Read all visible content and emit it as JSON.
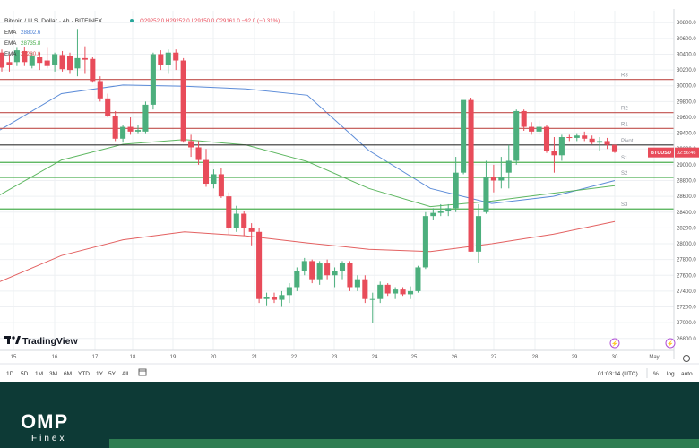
{
  "header": {
    "symbol_title": "Bitcoin / U.S. Dollar · 4h · BITFINEX",
    "ohlc": "O29252.0 H29252.0 L29150.0 C29161.0 −92.0 (−0.31%)"
  },
  "indicators": [
    {
      "label": "EMA",
      "value": "28802.6",
      "color": "#4a7fd4"
    },
    {
      "label": "EMA",
      "value": "28735.8",
      "color": "#4caf50"
    },
    {
      "label": "EMA",
      "value": "28280.0",
      "color": "#e05050"
    }
  ],
  "chart_data": {
    "type": "candlestick",
    "symbol": "BTCUSD",
    "x_tick_labels": [
      "15",
      "16",
      "17",
      "18",
      "19",
      "20",
      "21",
      "22",
      "23",
      "24",
      "25",
      "26",
      "27",
      "28",
      "29",
      "30",
      "May"
    ],
    "y_tick_values": [
      26800,
      27000,
      27200,
      27400,
      27600,
      27800,
      28000,
      28200,
      28400,
      28600,
      28800,
      29000,
      29200,
      29400,
      29600,
      29800,
      30000,
      30200,
      30400,
      30600,
      30800
    ],
    "ylim": [
      26650,
      30950
    ],
    "candles": [
      {
        "o": 30420,
        "h": 30460,
        "l": 30180,
        "c": 30230
      },
      {
        "o": 30300,
        "h": 30400,
        "l": 30180,
        "c": 30260
      },
      {
        "o": 30300,
        "h": 30480,
        "l": 30250,
        "c": 30450
      },
      {
        "o": 30440,
        "h": 30490,
        "l": 30250,
        "c": 30300
      },
      {
        "o": 30250,
        "h": 30420,
        "l": 30220,
        "c": 30380
      },
      {
        "o": 30360,
        "h": 30420,
        "l": 30200,
        "c": 30290
      },
      {
        "o": 30320,
        "h": 30480,
        "l": 30220,
        "c": 30250
      },
      {
        "o": 30260,
        "h": 30420,
        "l": 30180,
        "c": 30400
      },
      {
        "o": 30390,
        "h": 30440,
        "l": 30180,
        "c": 30210
      },
      {
        "o": 30380,
        "h": 30420,
        "l": 30150,
        "c": 30200
      },
      {
        "o": 30220,
        "h": 30720,
        "l": 30120,
        "c": 30350
      },
      {
        "o": 30350,
        "h": 30500,
        "l": 30150,
        "c": 30330
      },
      {
        "o": 30340,
        "h": 30360,
        "l": 30040,
        "c": 30060
      },
      {
        "o": 30060,
        "h": 30120,
        "l": 29800,
        "c": 29840
      },
      {
        "o": 29840,
        "h": 29900,
        "l": 29600,
        "c": 29620
      },
      {
        "o": 29620,
        "h": 29680,
        "l": 29300,
        "c": 29330
      },
      {
        "o": 29330,
        "h": 29500,
        "l": 29280,
        "c": 29480
      },
      {
        "o": 29480,
        "h": 29600,
        "l": 29380,
        "c": 29420
      },
      {
        "o": 29420,
        "h": 29500,
        "l": 29400,
        "c": 29440
      },
      {
        "o": 29420,
        "h": 29800,
        "l": 29400,
        "c": 29760
      },
      {
        "o": 29760,
        "h": 30420,
        "l": 29700,
        "c": 30400
      },
      {
        "o": 30400,
        "h": 30450,
        "l": 30200,
        "c": 30260
      },
      {
        "o": 30260,
        "h": 30460,
        "l": 30150,
        "c": 30420
      },
      {
        "o": 30420,
        "h": 30460,
        "l": 30200,
        "c": 30320
      },
      {
        "o": 30320,
        "h": 30350,
        "l": 29280,
        "c": 29300
      },
      {
        "o": 29300,
        "h": 29380,
        "l": 29100,
        "c": 29220
      },
      {
        "o": 29220,
        "h": 29300,
        "l": 29000,
        "c": 29060
      },
      {
        "o": 29060,
        "h": 29200,
        "l": 28720,
        "c": 28760
      },
      {
        "o": 28760,
        "h": 28940,
        "l": 28700,
        "c": 28880
      },
      {
        "o": 28880,
        "h": 28960,
        "l": 28580,
        "c": 28600
      },
      {
        "o": 28600,
        "h": 28650,
        "l": 28120,
        "c": 28200
      },
      {
        "o": 28200,
        "h": 28480,
        "l": 28150,
        "c": 28380
      },
      {
        "o": 28380,
        "h": 28420,
        "l": 28100,
        "c": 28200
      },
      {
        "o": 28200,
        "h": 28260,
        "l": 27980,
        "c": 28150
      },
      {
        "o": 28150,
        "h": 28200,
        "l": 27250,
        "c": 27300
      },
      {
        "o": 27300,
        "h": 27380,
        "l": 27220,
        "c": 27320
      },
      {
        "o": 27320,
        "h": 27380,
        "l": 27250,
        "c": 27290
      },
      {
        "o": 27290,
        "h": 27400,
        "l": 27200,
        "c": 27350
      },
      {
        "o": 27350,
        "h": 27500,
        "l": 27250,
        "c": 27450
      },
      {
        "o": 27450,
        "h": 27700,
        "l": 27400,
        "c": 27650
      },
      {
        "o": 27650,
        "h": 27820,
        "l": 27600,
        "c": 27780
      },
      {
        "o": 27780,
        "h": 27800,
        "l": 27500,
        "c": 27550
      },
      {
        "o": 27550,
        "h": 27780,
        "l": 27480,
        "c": 27750
      },
      {
        "o": 27750,
        "h": 27800,
        "l": 27550,
        "c": 27600
      },
      {
        "o": 27600,
        "h": 27700,
        "l": 27450,
        "c": 27650
      },
      {
        "o": 27650,
        "h": 27780,
        "l": 27550,
        "c": 27760
      },
      {
        "o": 27760,
        "h": 27780,
        "l": 27400,
        "c": 27450
      },
      {
        "o": 27450,
        "h": 27600,
        "l": 27400,
        "c": 27550
      },
      {
        "o": 27550,
        "h": 27600,
        "l": 27250,
        "c": 27300
      },
      {
        "o": 27300,
        "h": 27380,
        "l": 27000,
        "c": 27300
      },
      {
        "o": 27300,
        "h": 27520,
        "l": 27250,
        "c": 27480
      },
      {
        "o": 27480,
        "h": 27500,
        "l": 27340,
        "c": 27370
      },
      {
        "o": 27370,
        "h": 27450,
        "l": 27300,
        "c": 27420
      },
      {
        "o": 27420,
        "h": 27450,
        "l": 27340,
        "c": 27360
      },
      {
        "o": 27360,
        "h": 27460,
        "l": 27300,
        "c": 27400
      },
      {
        "o": 27400,
        "h": 27720,
        "l": 27380,
        "c": 27700
      },
      {
        "o": 27700,
        "h": 28400,
        "l": 27680,
        "c": 28350
      },
      {
        "o": 28350,
        "h": 28450,
        "l": 28300,
        "c": 28390
      },
      {
        "o": 28390,
        "h": 28500,
        "l": 28350,
        "c": 28420
      },
      {
        "o": 28420,
        "h": 28500,
        "l": 28350,
        "c": 28450
      },
      {
        "o": 28450,
        "h": 29100,
        "l": 28400,
        "c": 28900
      },
      {
        "o": 28900,
        "h": 29800,
        "l": 28880,
        "c": 29820
      },
      {
        "o": 29820,
        "h": 29850,
        "l": 27900,
        "c": 27900
      },
      {
        "o": 27900,
        "h": 28500,
        "l": 27750,
        "c": 28350
      },
      {
        "o": 28400,
        "h": 29050,
        "l": 28380,
        "c": 28850
      },
      {
        "o": 28850,
        "h": 29000,
        "l": 28650,
        "c": 28800
      },
      {
        "o": 28800,
        "h": 29100,
        "l": 28700,
        "c": 28850
      },
      {
        "o": 28900,
        "h": 29250,
        "l": 28700,
        "c": 29050
      },
      {
        "o": 29050,
        "h": 29700,
        "l": 29000,
        "c": 29680
      },
      {
        "o": 29680,
        "h": 29700,
        "l": 29430,
        "c": 29480
      },
      {
        "o": 29480,
        "h": 29540,
        "l": 29380,
        "c": 29420
      },
      {
        "o": 29420,
        "h": 29560,
        "l": 29380,
        "c": 29480
      },
      {
        "o": 29480,
        "h": 29500,
        "l": 29150,
        "c": 29180
      },
      {
        "o": 29180,
        "h": 29350,
        "l": 28900,
        "c": 29120
      },
      {
        "o": 29120,
        "h": 29380,
        "l": 29050,
        "c": 29350
      },
      {
        "o": 29350,
        "h": 29380,
        "l": 29300,
        "c": 29340
      },
      {
        "o": 29340,
        "h": 29400,
        "l": 29300,
        "c": 29370
      },
      {
        "o": 29370,
        "h": 29420,
        "l": 29300,
        "c": 29330
      },
      {
        "o": 29330,
        "h": 29370,
        "l": 29260,
        "c": 29280
      },
      {
        "o": 29280,
        "h": 29350,
        "l": 29180,
        "c": 29300
      },
      {
        "o": 29300,
        "h": 29340,
        "l": 29200,
        "c": 29252
      },
      {
        "o": 29252,
        "h": 29252,
        "l": 29150,
        "c": 29161
      }
    ],
    "ema_series": [
      {
        "name": "EMA 28802.6",
        "color": "#4a7fd4",
        "values": [
          29440,
          29900,
          30010,
          29995,
          29960,
          29880,
          29180,
          28700,
          28510,
          28600,
          28800
        ]
      },
      {
        "name": "EMA 28735.8",
        "color": "#4caf50",
        "values": [
          28620,
          29060,
          29260,
          29320,
          29250,
          29040,
          28700,
          28470,
          28540,
          28640,
          28735
        ]
      },
      {
        "name": "EMA 28280.0",
        "color": "#e05050",
        "values": [
          27520,
          27850,
          28050,
          28150,
          28100,
          28010,
          27930,
          27900,
          28000,
          28120,
          28280
        ]
      }
    ],
    "pivot_levels": [
      {
        "label": "R3",
        "value": 30080,
        "color": "#c0504d"
      },
      {
        "label": "R2",
        "value": 29660,
        "color": "#c0504d"
      },
      {
        "label": "R1",
        "value": 29460,
        "color": "#c0504d"
      },
      {
        "label": "Pivot",
        "value": 29250,
        "color": "#333333"
      },
      {
        "label": "S1",
        "value": 29030,
        "color": "#4caf50"
      },
      {
        "label": "S2",
        "value": 28840,
        "color": "#4caf50"
      },
      {
        "label": "S3",
        "value": 28440,
        "color": "#4caf50"
      }
    ],
    "last_price_tag": {
      "symbol": "BTCUSD",
      "time": "02:56:46",
      "value": 29161
    },
    "colors": {
      "up": "#4caf7d",
      "down": "#e84c5a"
    }
  },
  "branding": {
    "tradingview": "TradingView",
    "omp": "OMP",
    "finex": "Finex"
  },
  "toolbar": {
    "ranges": [
      "1D",
      "5D",
      "1M",
      "3M",
      "6M",
      "YTD",
      "1Y",
      "5Y",
      "All"
    ],
    "time": "01:03:14 (UTC)",
    "percent": "%",
    "log": "log",
    "auto": "auto"
  }
}
